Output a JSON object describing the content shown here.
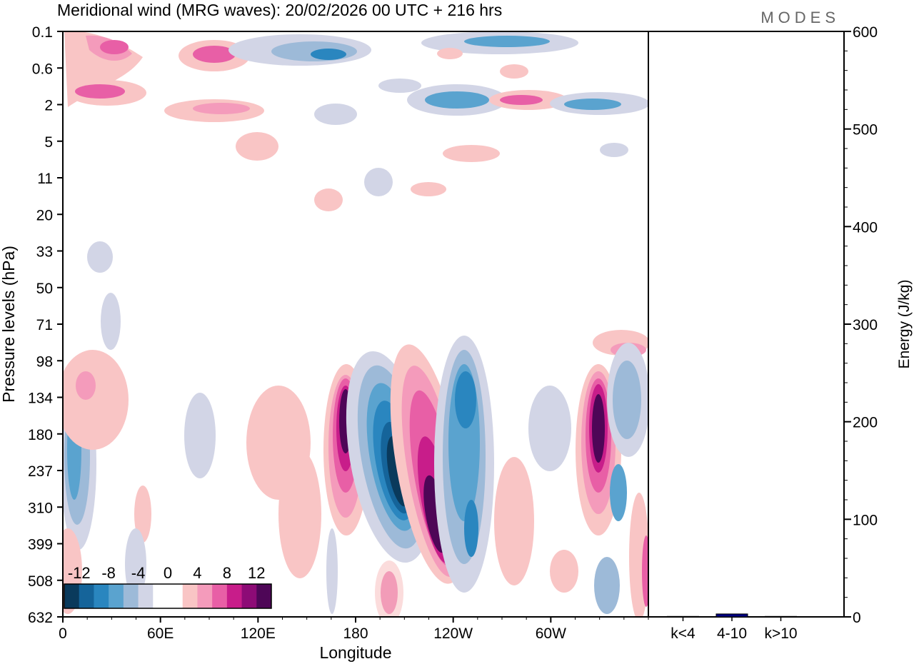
{
  "chart_data": [
    {
      "type": "heatmap",
      "title": "Meridional wind (MRG waves):  20/02/2026  00 UTC  + 216 hrs",
      "brand": "MODES",
      "xlabel": "Longitude",
      "ylabel": "Pressure levels (hPa)",
      "x_ticks": [
        {
          "label": "0",
          "lon": 0
        },
        {
          "label": "60E",
          "lon": 60
        },
        {
          "label": "120E",
          "lon": 120
        },
        {
          "label": "180",
          "lon": 180
        },
        {
          "label": "120W",
          "lon": 240
        },
        {
          "label": "60W",
          "lon": 300
        }
      ],
      "xlim": [
        0,
        360
      ],
      "y_levels": [
        "0.1",
        "0.6",
        "2",
        "5",
        "11",
        "20",
        "33",
        "50",
        "71",
        "98",
        "134",
        "180",
        "237",
        "310",
        "399",
        "508",
        "632"
      ],
      "colorbar": {
        "labels": [
          "-12",
          "-8",
          "-4",
          "0",
          "4",
          "8",
          "12"
        ],
        "colors": [
          "#0a3a5c",
          "#15649a",
          "#2a86bf",
          "#5aa3cf",
          "#9dbad8",
          "#d2d5e6",
          "#ffffff",
          "#ffffff",
          "#f9c5c5",
          "#f49bbb",
          "#e85fa6",
          "#c81d8a",
          "#8d0b76",
          "#4e0657"
        ]
      },
      "features": [
        {
          "sign": "positive",
          "lon": 160,
          "p": "180",
          "max": 14
        },
        {
          "sign": "negative",
          "lon": 205,
          "p": "237",
          "max": -14
        },
        {
          "sign": "positive",
          "lon": 230,
          "p": "399",
          "max": 14
        },
        {
          "sign": "negative",
          "lon": 255,
          "p": "310",
          "max": -10
        },
        {
          "sign": "positive",
          "lon": 330,
          "p": "180",
          "max": 14
        },
        {
          "sign": "negative",
          "lon": 5,
          "p": "237",
          "max": -10
        }
      ]
    },
    {
      "type": "bar",
      "ylabel": "Energy (J/kg)",
      "categories": [
        "k<4",
        "4-10",
        "k>10"
      ],
      "values": [
        0.5,
        3,
        0.5
      ],
      "ylim": [
        0,
        600
      ],
      "y_ticks": [
        "0",
        "100",
        "200",
        "300",
        "400",
        "500",
        "600"
      ],
      "bar_colors": [
        "#000080",
        "#000080",
        "#000080"
      ]
    }
  ]
}
